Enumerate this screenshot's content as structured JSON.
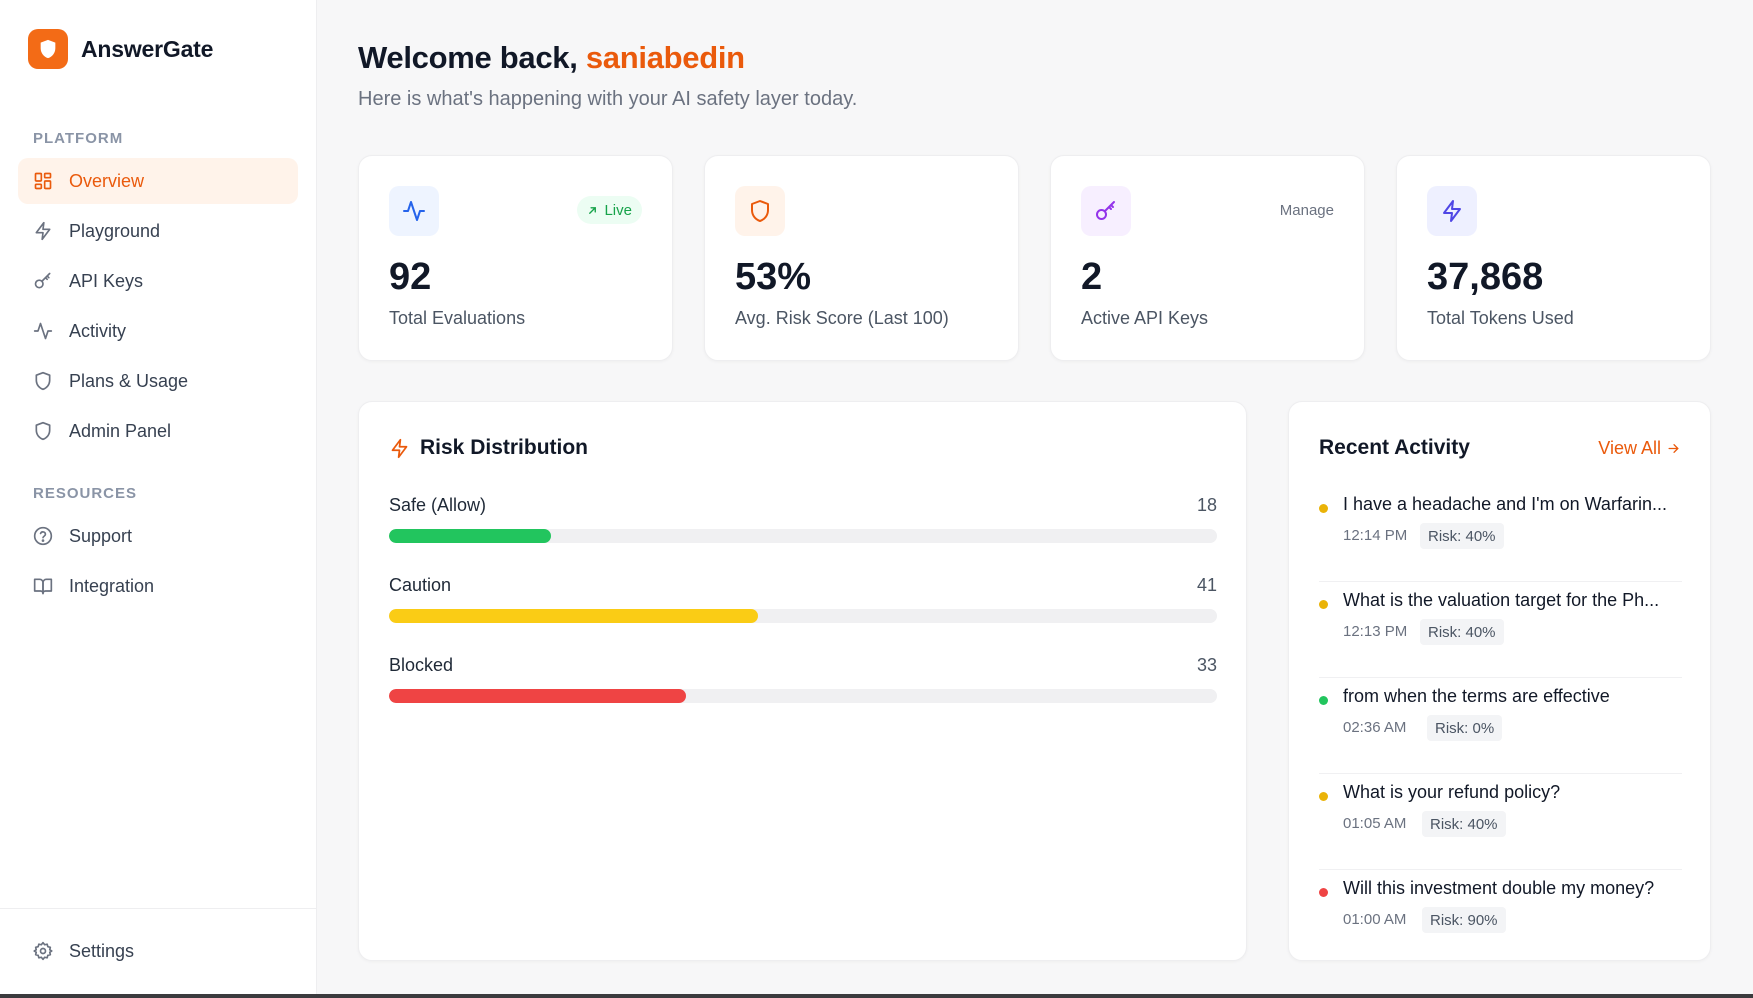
{
  "brand": {
    "name": "AnswerGate",
    "accent": "#f36b16"
  },
  "sidebar": {
    "platform_label": "PLATFORM",
    "platform_items": [
      {
        "label": "Overview",
        "icon": "grid-icon",
        "active": true
      },
      {
        "label": "Playground",
        "icon": "bolt-icon"
      },
      {
        "label": "API Keys",
        "icon": "key-icon"
      },
      {
        "label": "Activity",
        "icon": "activity-icon"
      },
      {
        "label": "Plans & Usage",
        "icon": "shield-icon"
      },
      {
        "label": "Admin Panel",
        "icon": "shield-icon"
      }
    ],
    "resources_label": "RESOURCES",
    "resource_items": [
      {
        "label": "Support",
        "icon": "help-circle-icon"
      },
      {
        "label": "Integration",
        "icon": "book-icon"
      }
    ],
    "settings_label": "Settings"
  },
  "header": {
    "welcome_prefix": "Welcome back,",
    "username": "saniabedin",
    "subtitle": "Here is what's happening with your AI safety layer today."
  },
  "stats": [
    {
      "value": "92",
      "label": "Total Evaluations",
      "icon": "activity-icon",
      "badge": "Live",
      "badge_color": "#16a34a"
    },
    {
      "value": "53%",
      "label": "Avg. Risk Score (Last 100)",
      "icon": "shield-icon"
    },
    {
      "value": "2",
      "label": "Active API Keys",
      "icon": "key-icon",
      "link": "Manage"
    },
    {
      "value": "37,868",
      "label": "Total Tokens Used",
      "icon": "bolt-icon"
    }
  ],
  "risk": {
    "title": "Risk Distribution",
    "rows": [
      {
        "label": "Safe (Allow)",
        "count": "18",
        "fraction": 0.196,
        "color": "#22c55e"
      },
      {
        "label": "Caution",
        "count": "41",
        "fraction": 0.446,
        "color": "#facc15"
      },
      {
        "label": "Blocked",
        "count": "33",
        "fraction": 0.359,
        "color": "#ef4444"
      }
    ]
  },
  "activity": {
    "title": "Recent Activity",
    "view_all": "View All",
    "items": [
      {
        "text": "I have a headache and I'm on Warfarin...",
        "time": "12:14 PM",
        "risk": "Risk: 40%",
        "dot": "#eab308"
      },
      {
        "text": "What is the valuation target for the Ph...",
        "time": "12:13 PM",
        "risk": "Risk: 40%",
        "dot": "#eab308"
      },
      {
        "text": "from when the terms are effective",
        "time": "02:36 AM",
        "risk": "Risk: 0%",
        "dot": "#22c55e"
      },
      {
        "text": "What is your refund policy?",
        "time": "01:05 AM",
        "risk": "Risk: 40%",
        "dot": "#eab308"
      },
      {
        "text": "Will this investment double my money?",
        "time": "01:00 AM",
        "risk": "Risk: 90%",
        "dot": "#ef4444"
      }
    ]
  }
}
